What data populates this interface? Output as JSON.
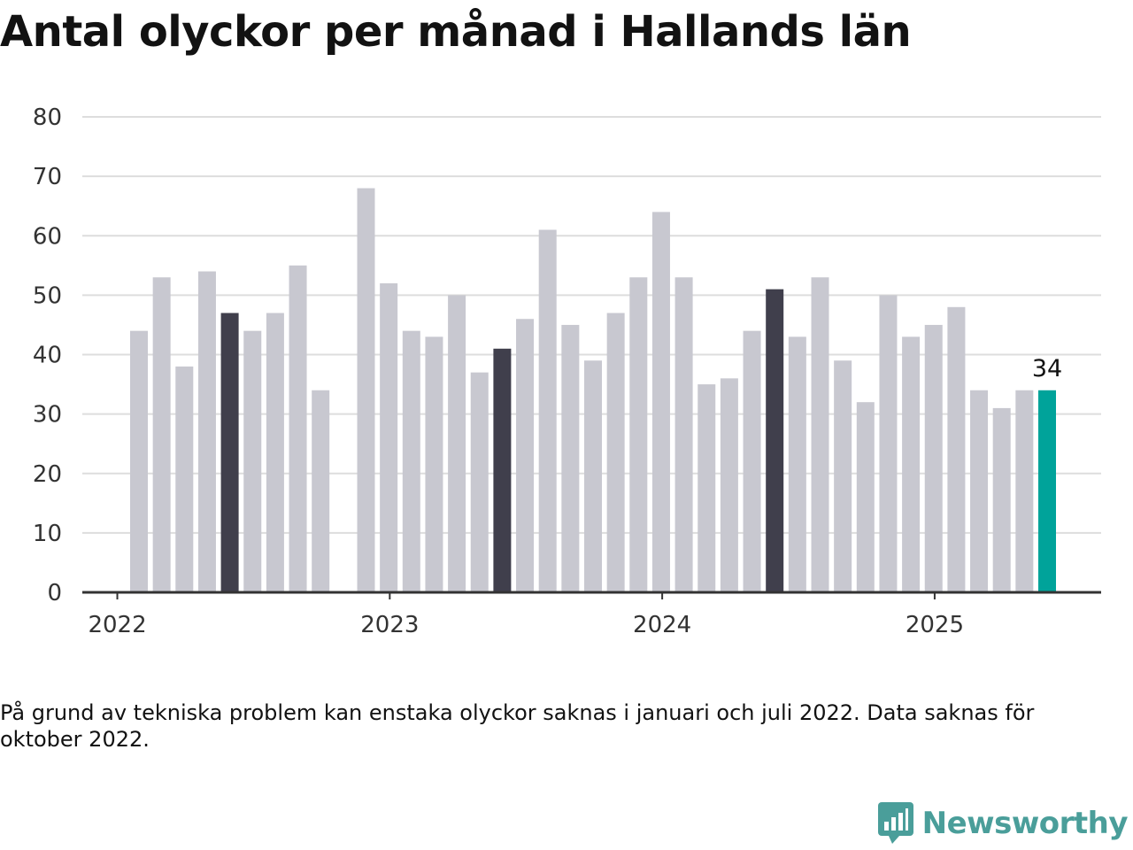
{
  "title": "Antal olyckor per månad i Hallands län",
  "note": "På grund av tekniska problem kan enstaka olyckor saknas i januari och juli 2022. Data saknas för oktober 2022.",
  "brand": "Newsworthy",
  "colors": {
    "bar": "#c8c8d0",
    "highlight": "#403f4c",
    "latest": "#00a39a",
    "grid": "#dddddd",
    "axis": "#333333"
  },
  "chart_data": {
    "type": "bar",
    "title": "Antal olyckor per månad i Hallands län",
    "xlabel": "",
    "ylabel": "",
    "ylim": [
      0,
      80
    ],
    "yticks": [
      "0",
      "10",
      "20",
      "30",
      "40",
      "50",
      "60",
      "70",
      "80"
    ],
    "xticks": [
      "2022",
      "2023",
      "2024",
      "2025"
    ],
    "grid": true,
    "categories": [
      "2022-01",
      "2022-02",
      "2022-03",
      "2022-04",
      "2022-05",
      "2022-06",
      "2022-07",
      "2022-08",
      "2022-09",
      "2022-10",
      "2022-11",
      "2022-12",
      "2023-01",
      "2023-02",
      "2023-03",
      "2023-04",
      "2023-05",
      "2023-06",
      "2023-07",
      "2023-08",
      "2023-09",
      "2023-10",
      "2023-11",
      "2023-12",
      "2024-01",
      "2024-02",
      "2024-03",
      "2024-04",
      "2024-05",
      "2024-06",
      "2024-07",
      "2024-08",
      "2024-09",
      "2024-10",
      "2024-11",
      "2024-12",
      "2025-01",
      "2025-02",
      "2025-03",
      "2025-04",
      "2025-05"
    ],
    "values": [
      44,
      53,
      38,
      54,
      47,
      44,
      47,
      55,
      34,
      null,
      68,
      52,
      44,
      43,
      50,
      37,
      41,
      46,
      61,
      45,
      39,
      47,
      53,
      64,
      53,
      35,
      36,
      44,
      51,
      43,
      53,
      39,
      32,
      50,
      43,
      45,
      48,
      34,
      31,
      34,
      34
    ],
    "highlighted": [
      "2022-05",
      "2023-05",
      "2024-05"
    ],
    "latest": "2025-05",
    "latest_label": "34"
  }
}
